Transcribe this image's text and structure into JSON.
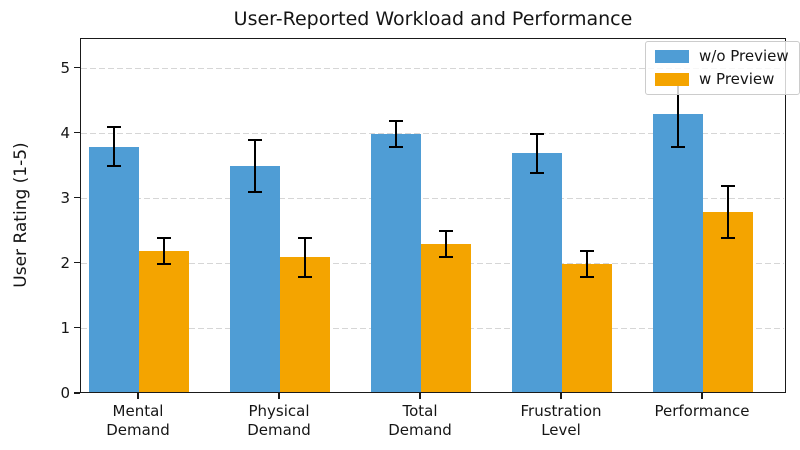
{
  "title": "User-Reported Workload and Performance",
  "chart_data": {
    "type": "bar",
    "title": "User-Reported Workload and Performance",
    "xlabel": "",
    "ylabel": "User Rating (1-5)",
    "categories": [
      "Mental\nDemand",
      "Physical\nDemand",
      "Total\nDemand",
      "Frustration\nLevel",
      "Performance"
    ],
    "series": [
      {
        "name": "w/o Preview",
        "color": "#4F9DD5",
        "values": [
          3.8,
          3.5,
          4.0,
          3.7,
          4.3
        ],
        "errors": [
          0.3,
          0.4,
          0.2,
          0.3,
          0.5
        ]
      },
      {
        "name": "w Preview",
        "color": "#F4A400",
        "values": [
          2.2,
          2.1,
          2.3,
          2.0,
          2.8
        ],
        "errors": [
          0.2,
          0.3,
          0.2,
          0.2,
          0.4
        ]
      }
    ],
    "ylim": [
      0,
      5.5
    ],
    "yticks": [
      0,
      1,
      2,
      3,
      4,
      5
    ],
    "grid": "horizontal-dashed",
    "grid_color": "#d6d6d6",
    "error_bar_color": "#000000",
    "legend_position": "upper-right"
  }
}
